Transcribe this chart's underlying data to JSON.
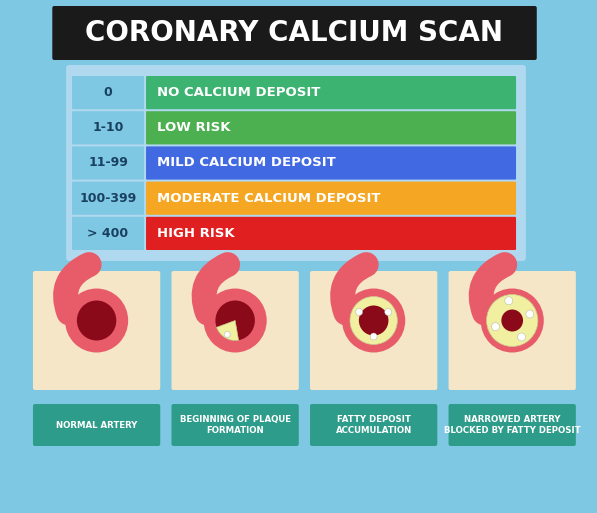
{
  "bg_color": "#7ec8e3",
  "title": "CORONARY CALCIUM SCAN",
  "title_bg": "#1a1a1a",
  "title_color": "#ffffff",
  "table_bg": "#add8e6",
  "rows": [
    {
      "score": "0",
      "label": "NO CALCIUM DEPOSIT",
      "color": "#3cb371"
    },
    {
      "score": "1-10",
      "label": "LOW RISK",
      "color": "#4caf50"
    },
    {
      "score": "11-99",
      "label": "MILD CALCIUM DEPOSIT",
      "color": "#4169e1"
    },
    {
      "score": "100-399",
      "label": "MODERATE CALCIUM DEPOSIT",
      "color": "#f5a623"
    },
    {
      "score": "> 400",
      "label": "HIGH RISK",
      "color": "#e02020"
    }
  ],
  "score_color": "#5b9bd5",
  "label_color": "#ffffff",
  "bottom_labels": [
    "NORMAL ARTERY",
    "BEGINNING OF PLAQUE\nFORMATION",
    "FATTY DEPOSIT\nACCUMULATION",
    "NARROWED ARTERY\nBLOCKED BY FATTY DEPOSIT"
  ],
  "bottom_label_bg": "#2e9c8a",
  "bottom_label_color": "#ffffff",
  "artery_bg": "#f5e6c8",
  "artery_outer_color": "#e85c6a",
  "artery_inner_color": "#8b0a1a",
  "plaque_color": "#f0f0a0",
  "calcium_color": "#d0d0b0"
}
